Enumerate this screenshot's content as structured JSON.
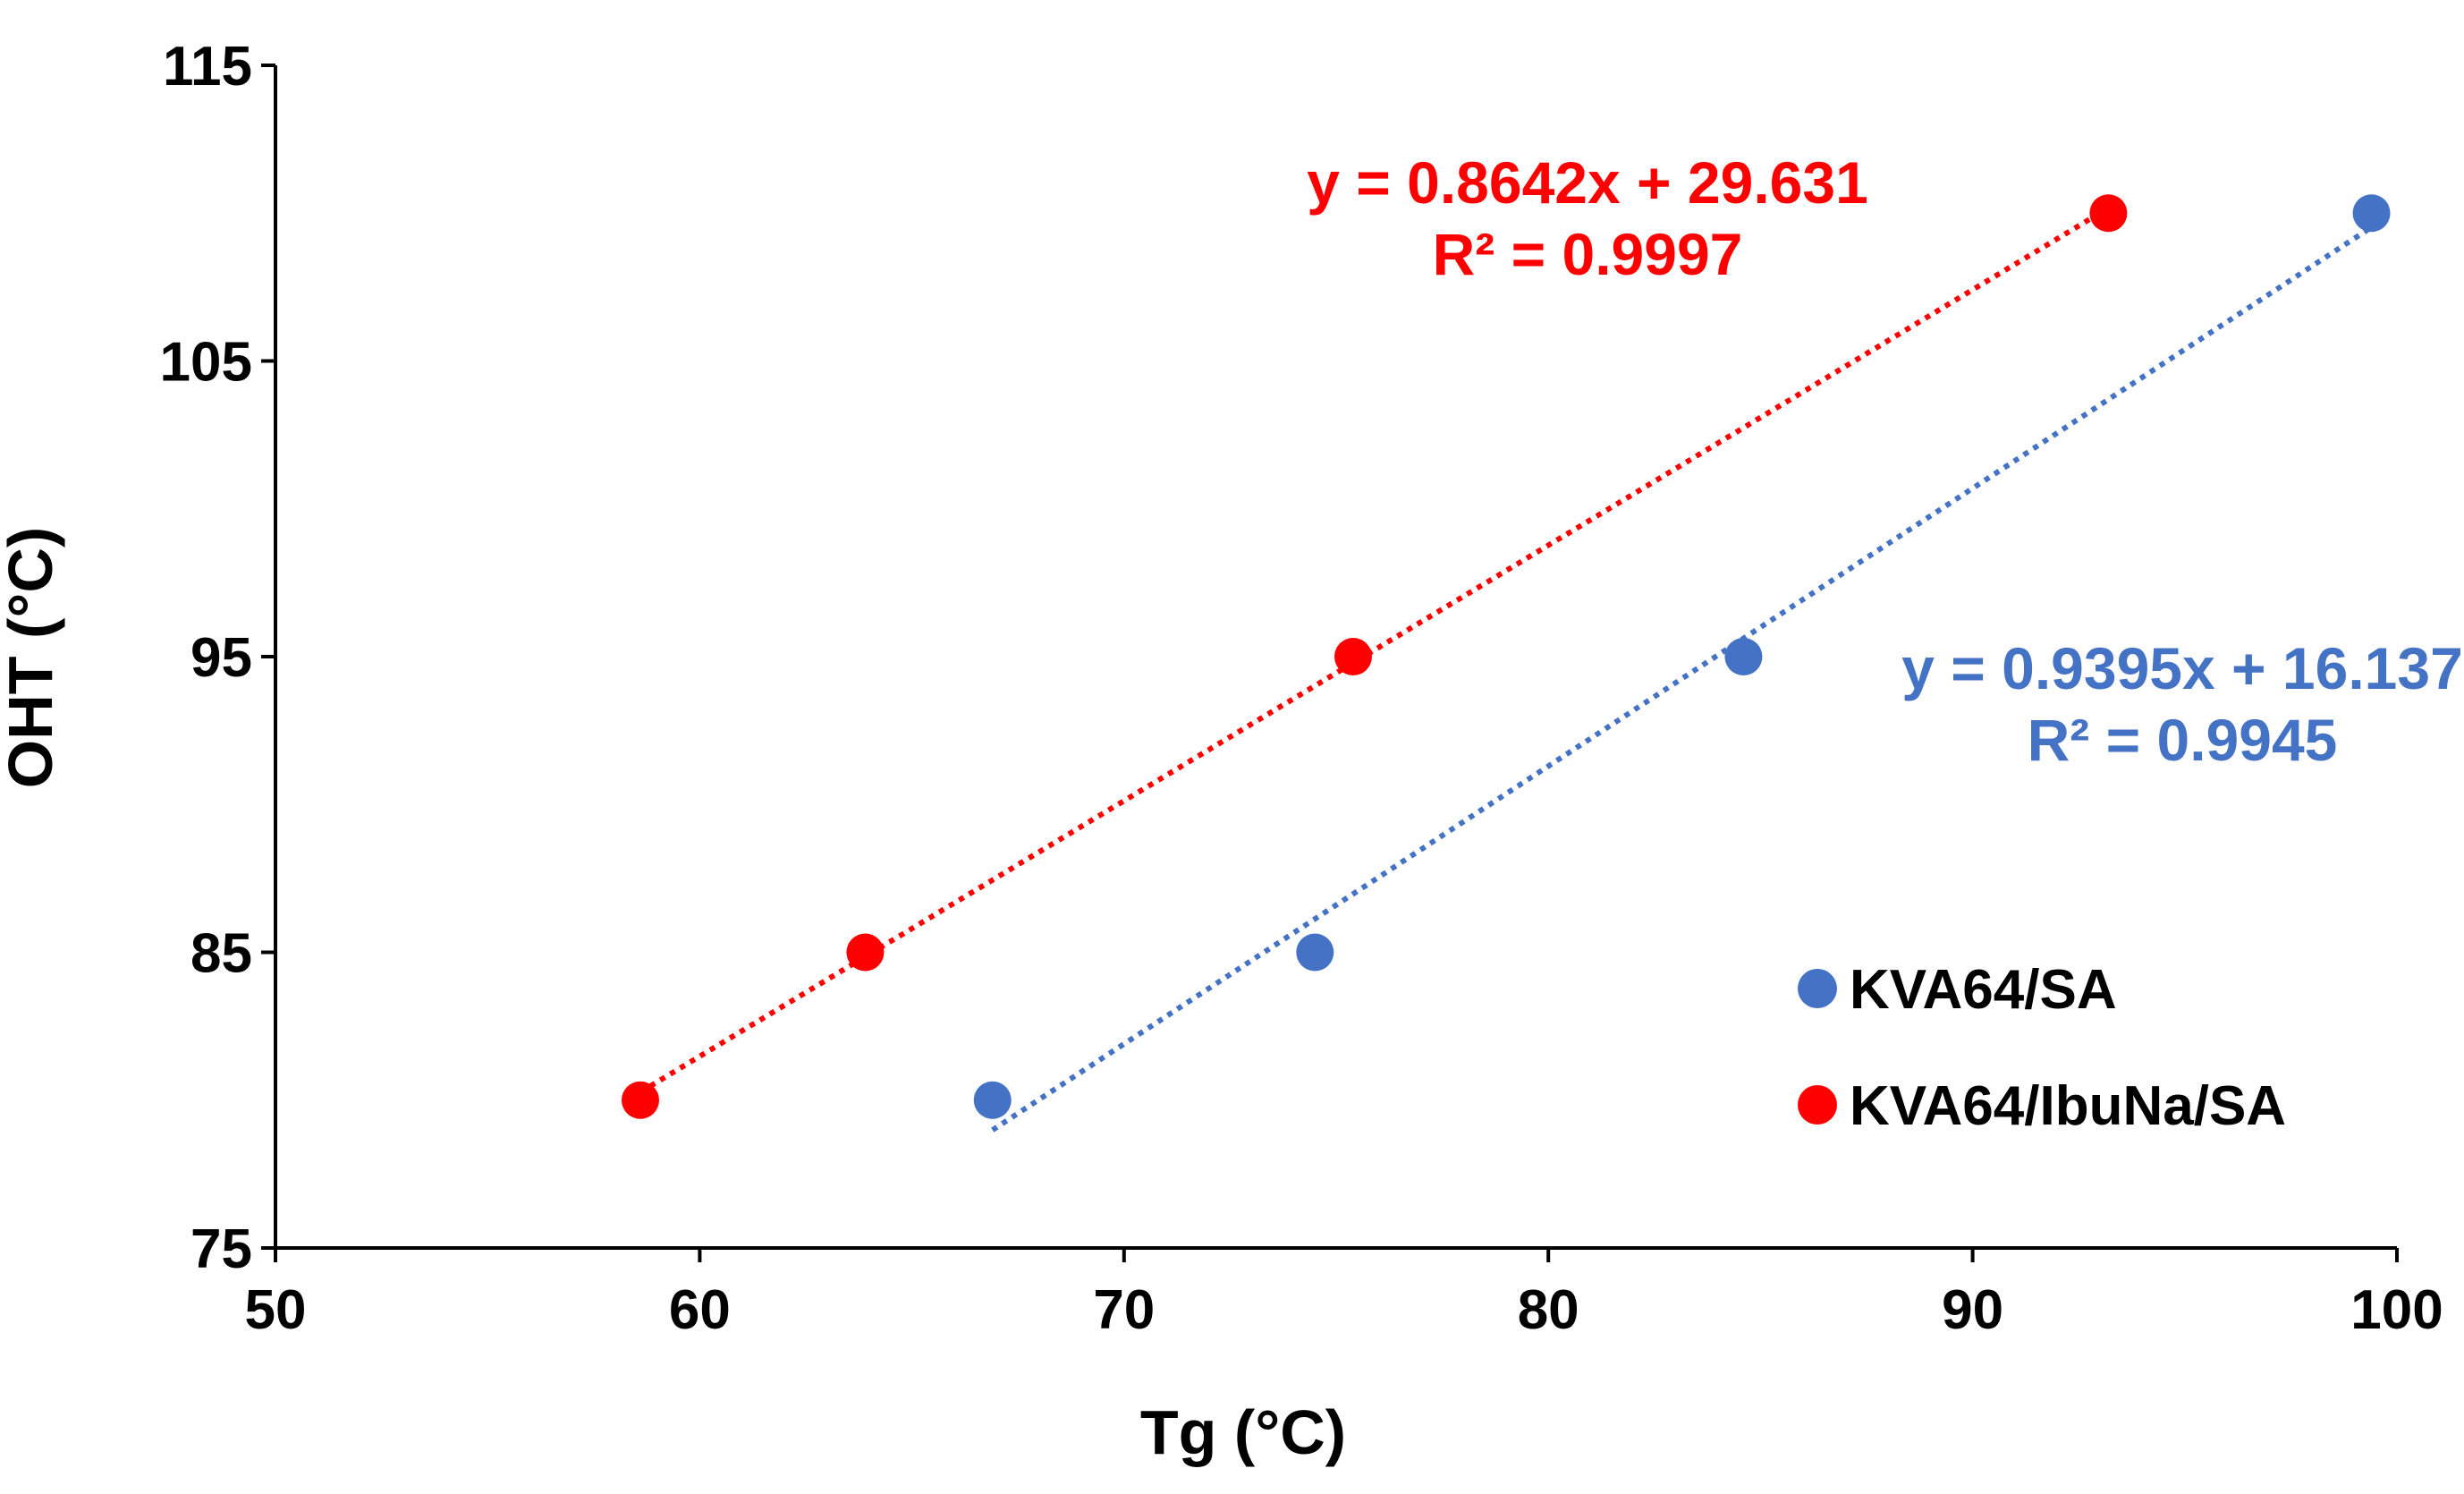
{
  "chart_data": {
    "type": "scatter",
    "xlabel": "Tg (°C)",
    "ylabel": "OHT (°C)",
    "xlim": [
      50,
      100
    ],
    "ylim": [
      75,
      115
    ],
    "x_ticks": [
      "50",
      "60",
      "70",
      "80",
      "90",
      "100"
    ],
    "y_ticks": [
      "75",
      "85",
      "95",
      "105",
      "115"
    ],
    "grid": false,
    "legend": {
      "position": "bottom-right",
      "entries": [
        "KVA64/SA",
        "KVA64/IbuNa/SA"
      ]
    },
    "series": [
      {
        "name": "KVA64/SA",
        "color": "#4472C4",
        "x": [
          66.9,
          74.5,
          84.6,
          99.4
        ],
        "y": [
          80,
          85,
          95,
          110
        ],
        "trendline": {
          "type": "linear",
          "slope": 0.9395,
          "intercept": 16.137,
          "x_range": [
            66.9,
            99.4
          ],
          "equation": "y = 0.9395x + 16.137",
          "r2": "R² = 0.9945"
        }
      },
      {
        "name": "KVA64/IbuNa/SA",
        "color": "#FF0000",
        "x": [
          58.6,
          63.9,
          75.4,
          93.2
        ],
        "y": [
          80,
          85,
          95,
          110
        ],
        "trendline": {
          "type": "linear",
          "slope": 0.8642,
          "intercept": 29.631,
          "x_range": [
            58.6,
            93.2
          ],
          "equation": "y = 0.8642x + 29.631",
          "r2": "R² = 0.9997"
        }
      }
    ]
  }
}
